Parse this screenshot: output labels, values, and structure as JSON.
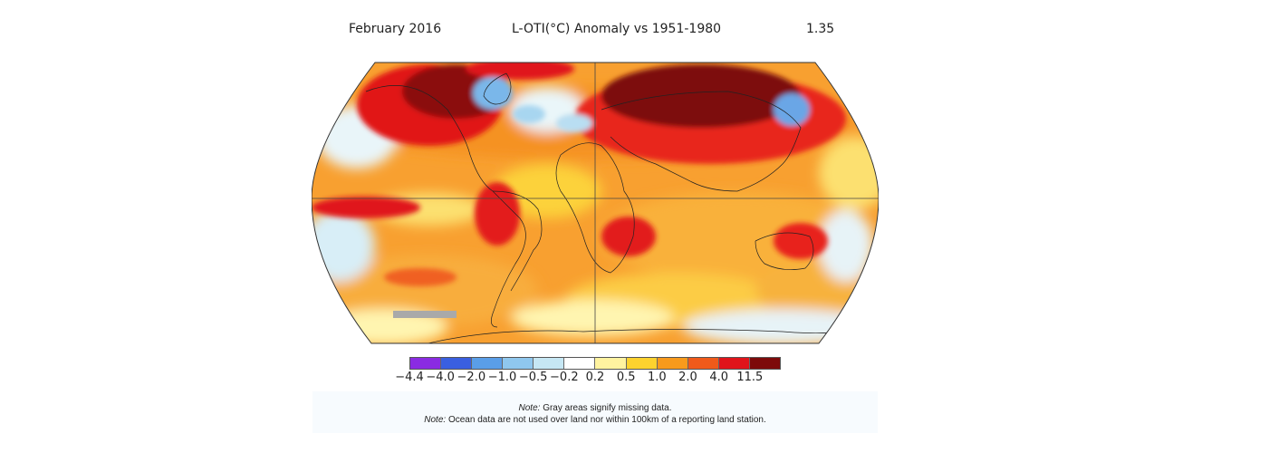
{
  "header": {
    "period": "February 2016",
    "title": "L-OTI(°C) Anomaly vs 1951-1980",
    "global_value": "1.35"
  },
  "colorbar": {
    "ticks": [
      "−4.4",
      "−4.0",
      "−2.0",
      "−1.0",
      "−0.5",
      "−0.2",
      "0.2",
      "0.5",
      "1.0",
      "2.0",
      "4.0",
      "11.5"
    ],
    "colors": [
      "#8a2be2",
      "#3a5fe0",
      "#5a9ee8",
      "#8fc7ee",
      "#c6e7f4",
      "#ffffff",
      "#fff3a0",
      "#fdd22e",
      "#f89a1c",
      "#f05a1a",
      "#e0141a",
      "#7d0a0a"
    ]
  },
  "notes": [
    {
      "label": "Note:",
      "text": " Gray areas signify missing data."
    },
    {
      "label": "Note:",
      "text": " Ocean data are not used over land nor within 100km of a reporting land station."
    }
  ]
}
